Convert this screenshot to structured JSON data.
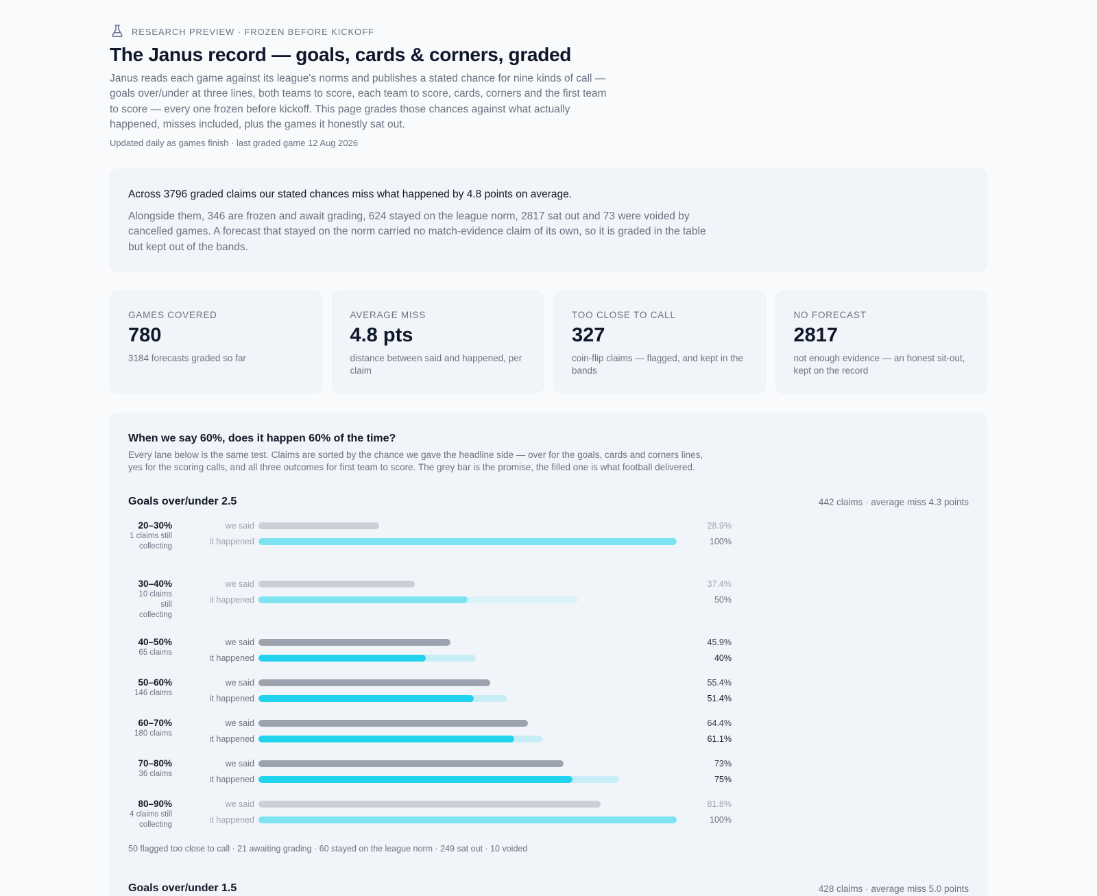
{
  "header": {
    "eyebrow": "RESEARCH PREVIEW · FROZEN BEFORE KICKOFF",
    "title": "The Janus record — goals, cards & corners, graded",
    "intro": "Janus reads each game against its league's norms and publishes a stated chance for nine kinds of call — goals over/under at three lines, both teams to score, each team to score, cards, corners and the first team to score — every one frozen before kickoff. This page grades those chances against what actually happened, misses included, plus the games it honestly sat out.",
    "updated": "Updated daily as games finish · last graded game 12 Aug 2026"
  },
  "summary": {
    "lead": "Across 3796 graded claims our stated chances miss what happened by 4.8 points on average.",
    "detail": "Alongside them, 346 are frozen and await grading, 624 stayed on the league norm, 2817 sat out and 73 were voided by cancelled games. A forecast that stayed on the norm carried no match-evidence claim of its own, so it is graded in the table but kept out of the bands."
  },
  "stats": [
    {
      "label": "GAMES COVERED",
      "value": "780",
      "note": "3184 forecasts graded so far"
    },
    {
      "label": "AVERAGE MISS",
      "value": "4.8 pts",
      "note": "distance between said and happened, per claim"
    },
    {
      "label": "TOO CLOSE TO CALL",
      "value": "327",
      "note": "coin-flip claims — flagged, and kept in the bands"
    },
    {
      "label": "NO FORECAST",
      "value": "2817",
      "note": "not enough evidence — an honest sit-out, kept on the record"
    }
  ],
  "calibration": {
    "title": "When we say 60%, does it happen 60% of the time?",
    "explain": "Every lane below is the same test. Claims are sorted by the chance we gave the headline side — over for the goals, cards and corners lines, yes for the scoring calls, and all three outcomes for first team to score. The grey bar is the promise, the filled one is what football delivered.",
    "row_labels": {
      "said": "we said",
      "happened": "it happened"
    },
    "lane": {
      "title": "Goals over/under 2.5",
      "meta": "442 claims · average miss 4.3 points",
      "footnote": "50 flagged too close to call · 21 awaiting grading · 60 stayed on the league norm · 249 sat out · 10 voided",
      "bands": [
        {
          "range": "20–30%",
          "count": "1 claims still collecting",
          "said": 28.9,
          "happened": 100,
          "said_label": "28.9%",
          "happened_label": "100%",
          "interval": [
            0,
            100
          ],
          "collecting": true
        },
        {
          "range": "30–40%",
          "count": "10 claims still collecting",
          "said": 37.4,
          "happened": 50,
          "said_label": "37.4%",
          "happened_label": "50%",
          "interval": [
            0,
            76.4
          ],
          "collecting": true
        },
        {
          "range": "40–50%",
          "count": "65 claims",
          "said": 45.9,
          "happened": 40,
          "said_label": "45.9%",
          "happened_label": "40%",
          "interval": [
            0,
            52
          ],
          "collecting": false
        },
        {
          "range": "50–60%",
          "count": "146 claims",
          "said": 55.4,
          "happened": 51.4,
          "said_label": "55.4%",
          "happened_label": "51.4%",
          "interval": [
            0,
            59.3
          ],
          "collecting": false
        },
        {
          "range": "60–70%",
          "count": "180 claims",
          "said": 64.4,
          "happened": 61.1,
          "said_label": "64.4%",
          "happened_label": "61.1%",
          "interval": [
            0,
            67.8
          ],
          "collecting": false
        },
        {
          "range": "70–80%",
          "count": "36 claims",
          "said": 73,
          "happened": 75,
          "said_label": "73%",
          "happened_label": "75%",
          "interval": [
            0,
            86.3
          ],
          "collecting": false
        },
        {
          "range": "80–90%",
          "count": "4 claims still collecting",
          "said": 81.8,
          "happened": 100,
          "said_label": "81.8%",
          "happened_label": "100%",
          "interval": [
            0,
            100
          ],
          "collecting": true
        }
      ]
    },
    "next_lane": {
      "title": "Goals over/under 1.5",
      "meta": "428 claims · average miss 5.0 points"
    }
  },
  "colors": {
    "said_bar": "#9ca3af",
    "said_bar_faded": "#cbd0d6",
    "happened_bar": "#22d3ee",
    "happened_bar_faded": "#7ee3f1",
    "interval_bar": "#c7eef6",
    "interval_bar_faded": "#d9f3f8"
  }
}
